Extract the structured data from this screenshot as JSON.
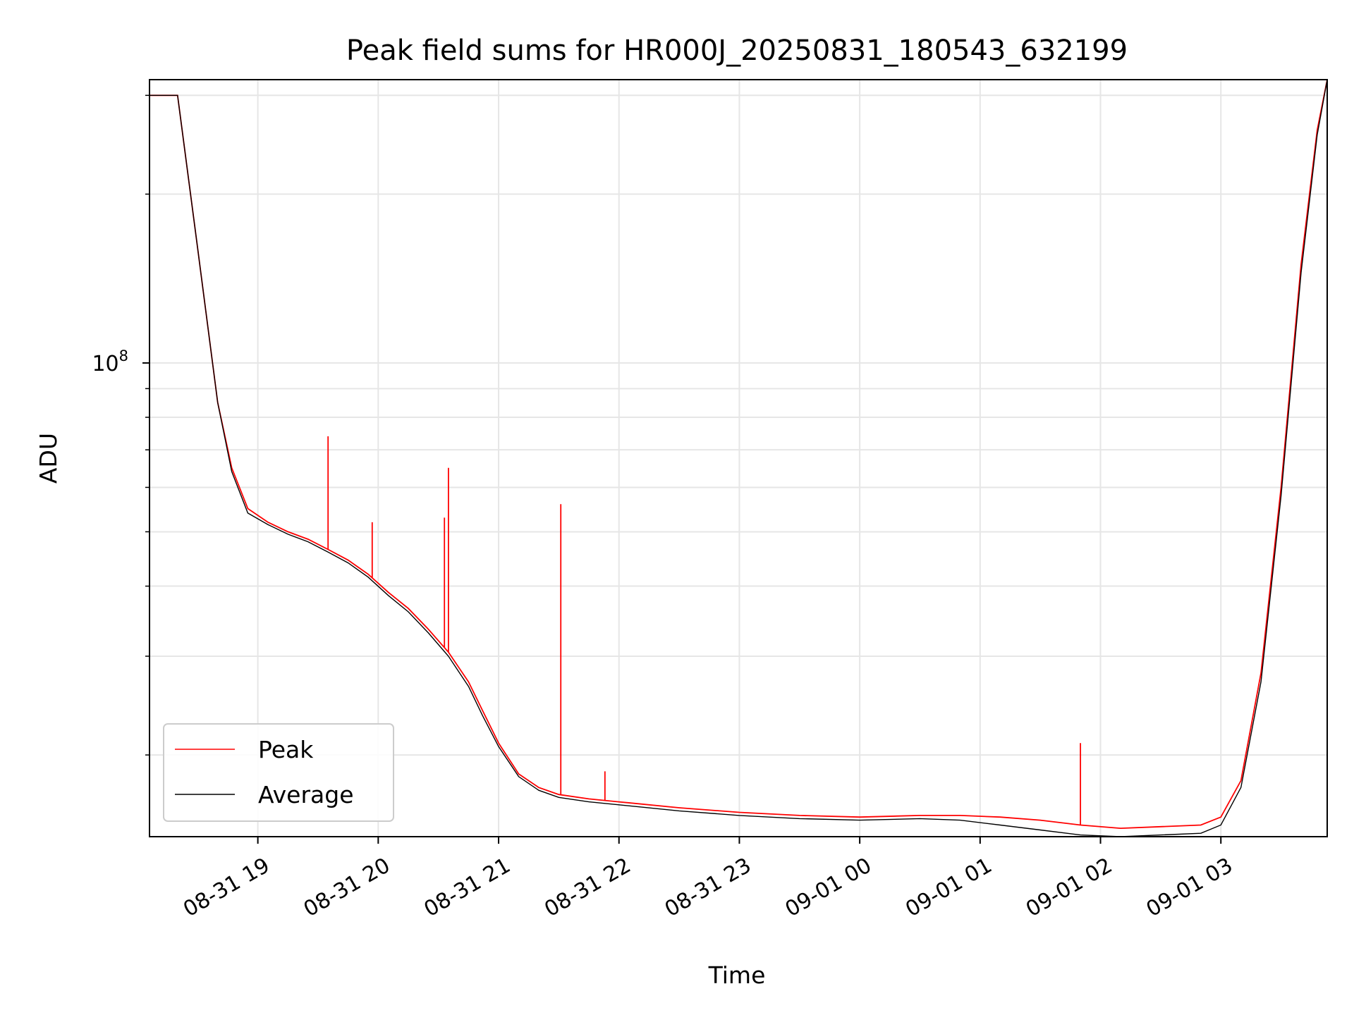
{
  "chart_data": {
    "type": "line",
    "title": "Peak field sums for HR000J_20250831_180543_632199",
    "xlabel": "Time",
    "ylabel": "ADU",
    "yscale": "log",
    "grid": true,
    "legend_position": "lower-left",
    "xlim": [
      "2025-08-31 18:06",
      "2025-09-01 03:53"
    ],
    "ylim": [
      14300000,
      320000000
    ],
    "x_tick_labels": [
      "08-31 19",
      "08-31 20",
      "08-31 21",
      "08-31 22",
      "08-31 23",
      "09-01 00",
      "09-01 01",
      "09-01 02",
      "09-01 03"
    ],
    "y_tick_labels": [
      {
        "base": "10",
        "exp": "8"
      }
    ],
    "series": [
      {
        "name": "Peak",
        "color": "#ff0000",
        "x": [
          "2025-08-31 18:06",
          "2025-08-31 18:20",
          "2025-08-31 18:30",
          "2025-08-31 18:40",
          "2025-08-31 18:47",
          "2025-08-31 18:55",
          "2025-08-31 19:05",
          "2025-08-31 19:15",
          "2025-08-31 19:25",
          "2025-08-31 19:35",
          "2025-08-31 19:45",
          "2025-08-31 19:55",
          "2025-08-31 20:05",
          "2025-08-31 20:15",
          "2025-08-31 20:25",
          "2025-08-31 20:35",
          "2025-08-31 20:45",
          "2025-08-31 20:52",
          "2025-08-31 21:00",
          "2025-08-31 21:10",
          "2025-08-31 21:20",
          "2025-08-31 21:30",
          "2025-08-31 21:45",
          "2025-08-31 22:00",
          "2025-08-31 22:30",
          "2025-08-31 23:00",
          "2025-08-31 23:30",
          "2025-09-01 00:00",
          "2025-09-01 00:30",
          "2025-09-01 00:50",
          "2025-09-01 01:10",
          "2025-09-01 01:30",
          "2025-09-01 01:50",
          "2025-09-01 02:10",
          "2025-09-01 02:30",
          "2025-09-01 02:50",
          "2025-09-01 03:00",
          "2025-09-01 03:10",
          "2025-09-01 03:20",
          "2025-09-01 03:30",
          "2025-09-01 03:40",
          "2025-09-01 03:48",
          "2025-09-01 03:53"
        ],
        "values": [
          300000000,
          300000000,
          160000000,
          85000000,
          65000000,
          55000000,
          52000000,
          50000000,
          48500000,
          46500000,
          44500000,
          42000000,
          39000000,
          36500000,
          33500000,
          30500000,
          27000000,
          24000000,
          21000000,
          18500000,
          17500000,
          17000000,
          16700000,
          16500000,
          16100000,
          15800000,
          15600000,
          15500000,
          15600000,
          15600000,
          15500000,
          15300000,
          15000000,
          14800000,
          14900000,
          15000000,
          15500000,
          18000000,
          28000000,
          60000000,
          150000000,
          260000000,
          320000000
        ]
      },
      {
        "name": "Average",
        "color": "#000000",
        "x": [
          "2025-08-31 18:06",
          "2025-08-31 18:20",
          "2025-08-31 18:30",
          "2025-08-31 18:40",
          "2025-08-31 18:47",
          "2025-08-31 18:55",
          "2025-08-31 19:05",
          "2025-08-31 19:15",
          "2025-08-31 19:25",
          "2025-08-31 19:35",
          "2025-08-31 19:45",
          "2025-08-31 19:55",
          "2025-08-31 20:05",
          "2025-08-31 20:15",
          "2025-08-31 20:25",
          "2025-08-31 20:35",
          "2025-08-31 20:45",
          "2025-08-31 20:52",
          "2025-08-31 21:00",
          "2025-08-31 21:10",
          "2025-08-31 21:20",
          "2025-08-31 21:30",
          "2025-08-31 21:45",
          "2025-08-31 22:00",
          "2025-08-31 22:30",
          "2025-08-31 23:00",
          "2025-08-31 23:30",
          "2025-09-01 00:00",
          "2025-09-01 00:30",
          "2025-09-01 00:50",
          "2025-09-01 01:10",
          "2025-09-01 01:30",
          "2025-09-01 01:50",
          "2025-09-01 02:10",
          "2025-09-01 02:30",
          "2025-09-01 02:50",
          "2025-09-01 03:00",
          "2025-09-01 03:10",
          "2025-09-01 03:20",
          "2025-09-01 03:30",
          "2025-09-01 03:40",
          "2025-09-01 03:48",
          "2025-09-01 03:53"
        ],
        "values": [
          300000000,
          300000000,
          160000000,
          85000000,
          64000000,
          54000000,
          51500000,
          49500000,
          48000000,
          46000000,
          44000000,
          41500000,
          38500000,
          36000000,
          33000000,
          30000000,
          26500000,
          23500000,
          20700000,
          18300000,
          17300000,
          16800000,
          16500000,
          16300000,
          15900000,
          15600000,
          15400000,
          15300000,
          15400000,
          15300000,
          15000000,
          14700000,
          14400000,
          14300000,
          14400000,
          14500000,
          15000000,
          17500000,
          27000000,
          58000000,
          145000000,
          255000000,
          320000000
        ]
      }
    ],
    "annotations": [
      {
        "series": "Peak",
        "x": "2025-08-31 19:35",
        "y": 74000000
      },
      {
        "series": "Peak",
        "x": "2025-08-31 19:57",
        "y": 52000000
      },
      {
        "series": "Peak",
        "x": "2025-08-31 20:33",
        "y": 53000000
      },
      {
        "series": "Peak",
        "x": "2025-08-31 20:35",
        "y": 65000000
      },
      {
        "series": "Peak",
        "x": "2025-08-31 21:31",
        "y": 56000000
      },
      {
        "series": "Peak",
        "x": "2025-08-31 21:53",
        "y": 18700000
      },
      {
        "series": "Peak",
        "x": "2025-09-01 01:50",
        "y": 21000000
      }
    ]
  }
}
